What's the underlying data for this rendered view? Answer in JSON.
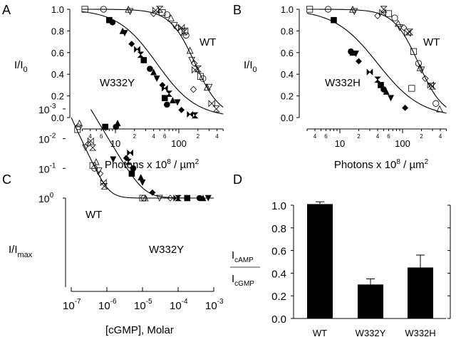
{
  "chart_data": [
    {
      "panel": "A",
      "type": "scatter",
      "xscale": "log",
      "xlabel": "Photons x 10^8 / µm^2",
      "xlabel_parts": {
        "main": "Photons x 10",
        "sup": "8",
        "rest": " / µm",
        "sup2": "2"
      },
      "ylabel": "I/I0",
      "ylabel_parts": {
        "main": "I/I",
        "sub": "0"
      },
      "xlim": [
        3,
        500
      ],
      "ylim": [
        0,
        1
      ],
      "yticks": [
        "0.0",
        "0.2",
        "0.4",
        "0.6",
        "0.8",
        "1.0"
      ],
      "xticks_major": [
        "10",
        "100"
      ],
      "xticks_minor_labels": [
        {
          "v": 4,
          "t": "4"
        },
        {
          "v": 6,
          "t": "6"
        },
        {
          "v": 20,
          "t": "2"
        },
        {
          "v": 40,
          "t": "4"
        },
        {
          "v": 60,
          "t": "6"
        },
        {
          "v": 200,
          "t": "2"
        },
        {
          "v": 400,
          "t": "4"
        }
      ],
      "series": [
        {
          "name": "WT",
          "filled": false,
          "fit": {
            "type": "hill_decay",
            "k": 180,
            "n": 2.2
          },
          "points": [
            [
              3.3,
              1.0
            ],
            [
              6.5,
              1.0
            ],
            [
              16,
              1.0
            ],
            [
              17,
              0.98
            ],
            [
              40,
              0.96
            ],
            [
              43,
              0.99
            ],
            [
              50,
              1.0
            ],
            [
              55,
              0.97
            ],
            [
              65,
              0.95
            ],
            [
              75,
              0.92
            ],
            [
              85,
              0.85
            ],
            [
              95,
              0.83
            ],
            [
              110,
              0.83
            ],
            [
              120,
              0.79
            ],
            [
              125,
              0.8
            ],
            [
              130,
              0.76
            ],
            [
              150,
              0.62
            ],
            [
              160,
              0.53
            ],
            [
              175,
              0.5
            ],
            [
              180,
              0.44
            ],
            [
              200,
              0.45
            ],
            [
              220,
              0.38
            ],
            [
              240,
              0.36
            ],
            [
              280,
              0.28
            ],
            [
              300,
              0.28
            ],
            [
              170,
              0.26
            ],
            [
              330,
              0.13
            ],
            [
              390,
              0.08
            ]
          ]
        },
        {
          "name": "W332Y",
          "filled": true,
          "fit": {
            "type": "hill_decay",
            "k": 45,
            "n": 1.4
          },
          "points": [
            [
              8,
              0.9
            ],
            [
              9,
              0.88
            ],
            [
              13,
              0.8
            ],
            [
              14,
              0.78
            ],
            [
              18,
              0.68
            ],
            [
              22,
              0.63
            ],
            [
              25,
              0.58
            ],
            [
              28,
              0.53
            ],
            [
              35,
              0.45
            ],
            [
              40,
              0.42
            ],
            [
              45,
              0.36
            ],
            [
              55,
              0.3
            ],
            [
              60,
              0.27
            ],
            [
              70,
              0.22
            ],
            [
              60,
              0.18
            ],
            [
              65,
              0.12
            ],
            [
              80,
              0.16
            ],
            [
              95,
              0.14
            ],
            [
              110,
              0.07
            ],
            [
              150,
              0.03
            ],
            [
              180,
              0.02
            ]
          ]
        }
      ],
      "annotations": [
        {
          "text": "WT"
        },
        {
          "text": "W332Y"
        }
      ]
    },
    {
      "panel": "B",
      "type": "scatter",
      "xscale": "log",
      "xlabel": "Photons x 10^8 / µm^2",
      "ylabel": "I/I0",
      "xlim": [
        3,
        500
      ],
      "ylim": [
        0,
        1
      ],
      "yticks": [
        "0.0",
        "0.2",
        "0.4",
        "0.6",
        "0.8",
        "1.0"
      ],
      "xticks_major": [
        "10",
        "100"
      ],
      "series": [
        {
          "name": "WT",
          "filled": false,
          "fit": {
            "type": "hill_decay",
            "k": 180,
            "n": 2.2
          },
          "points": [
            [
              3.3,
              1.0
            ],
            [
              6.5,
              1.0
            ],
            [
              16,
              1.0
            ],
            [
              17,
              0.98
            ],
            [
              40,
              0.94
            ],
            [
              48,
              0.97
            ],
            [
              50,
              1.0
            ],
            [
              60,
              0.96
            ],
            [
              75,
              0.92
            ],
            [
              85,
              0.87
            ],
            [
              90,
              0.83
            ],
            [
              105,
              0.83
            ],
            [
              120,
              0.78
            ],
            [
              130,
              0.79
            ],
            [
              150,
              0.61
            ],
            [
              180,
              0.5
            ],
            [
              190,
              0.46
            ],
            [
              200,
              0.44
            ],
            [
              230,
              0.36
            ],
            [
              280,
              0.3
            ],
            [
              300,
              0.29
            ],
            [
              140,
              0.27
            ],
            [
              340,
              0.13
            ],
            [
              390,
              0.08
            ]
          ]
        },
        {
          "name": "W332H",
          "filled": true,
          "fit": {
            "type": "hill_decay",
            "k": 40,
            "n": 1.25
          },
          "points": [
            [
              8,
              0.9
            ],
            [
              15,
              0.61
            ],
            [
              16,
              0.6
            ],
            [
              18,
              0.59
            ],
            [
              20,
              0.52
            ],
            [
              30,
              0.42
            ],
            [
              40,
              0.35
            ],
            [
              45,
              0.3
            ],
            [
              50,
              0.26
            ],
            [
              55,
              0.24
            ],
            [
              65,
              0.18
            ],
            [
              110,
              0.09
            ]
          ]
        }
      ],
      "annotations": [
        {
          "text": "WT"
        },
        {
          "text": "W332H"
        }
      ]
    },
    {
      "panel": "C",
      "type": "scatter",
      "xscale": "log",
      "yscale": "log",
      "xlabel": "[cGMP], Molar",
      "ylabel": "I/Imax",
      "ylabel_parts": {
        "main": "I/I",
        "sub": "max"
      },
      "xlim": [
        1e-07,
        0.001
      ],
      "ylim": [
        0.001,
        1
      ],
      "xticks": [
        {
          "base": "10",
          "exp": "-7"
        },
        {
          "base": "10",
          "exp": "-6"
        },
        {
          "base": "10",
          "exp": "-5"
        },
        {
          "base": "10",
          "exp": "-4"
        },
        {
          "base": "10",
          "exp": "-3"
        }
      ],
      "yticks": [
        {
          "base": "10",
          "exp": "-3"
        },
        {
          "base": "10",
          "exp": "-2"
        },
        {
          "base": "10",
          "exp": "-1"
        },
        {
          "base": "10",
          "exp": "0"
        }
      ],
      "series": [
        {
          "name": "WT",
          "filled": false,
          "fit": {
            "type": "hill_rise",
            "k": 1.1e-06,
            "n": 2.6
          },
          "points": [
            [
              1.5e-07,
              0.005
            ],
            [
              1.6e-07,
              0.004
            ],
            [
              1.7e-07,
              0.003
            ],
            [
              2.5e-07,
              0.02
            ],
            [
              3e-07,
              0.015
            ],
            [
              3.5e-07,
              0.012
            ],
            [
              4e-07,
              0.02
            ],
            [
              4e-07,
              0.08
            ],
            [
              4.5e-07,
              0.1
            ],
            [
              5e-07,
              0.06
            ],
            [
              6e-07,
              0.12
            ],
            [
              6.5e-07,
              0.15
            ],
            [
              8e-07,
              0.3
            ],
            [
              8.5e-07,
              0.4
            ],
            [
              1e-05,
              1.0
            ],
            [
              1.1e-05,
              1.0
            ],
            [
              1.2e-05,
              1.0
            ],
            [
              3e-05,
              1.0
            ],
            [
              6e-05,
              1.0
            ]
          ]
        },
        {
          "name": "W332Y",
          "filled": true,
          "fit": {
            "type": "hill_rise",
            "k": 1.1e-05,
            "n": 2.0
          },
          "points": [
            [
              9e-07,
              0.004
            ],
            [
              1.8e-06,
              0.004
            ],
            [
              2e-06,
              0.003
            ],
            [
              1.5e-06,
              0.05
            ],
            [
              3.5e-06,
              0.045
            ],
            [
              4.5e-06,
              0.03
            ],
            [
              4e-06,
              0.06
            ],
            [
              5e-06,
              0.15
            ],
            [
              5.5e-06,
              0.1
            ],
            [
              9e-06,
              0.2
            ],
            [
              1e-05,
              0.3
            ],
            [
              1.9e-05,
              0.65
            ],
            [
              9e-05,
              1.0
            ],
            [
              0.0001,
              1.0
            ],
            [
              0.00018,
              1.0
            ],
            [
              0.0004,
              1.0
            ],
            [
              0.0005,
              1.0
            ],
            [
              0.0007,
              1.0
            ]
          ]
        }
      ],
      "annotations": [
        {
          "text": "WT"
        },
        {
          "text": "W332Y"
        }
      ]
    },
    {
      "panel": "D",
      "type": "bar",
      "categories": [
        "WT",
        "W332Y",
        "W332H"
      ],
      "values": [
        1.01,
        0.3,
        0.45
      ],
      "errors": [
        0.02,
        0.05,
        0.11
      ],
      "ylim": [
        0,
        1.0
      ],
      "yticks": [
        "0.0",
        "0.2",
        "0.4",
        "0.6",
        "0.8",
        "1.0"
      ],
      "ylabel_num": {
        "main": "I",
        "sub": "cAMP"
      },
      "ylabel_den": {
        "main": "I",
        "sub": "cGMP"
      }
    }
  ]
}
